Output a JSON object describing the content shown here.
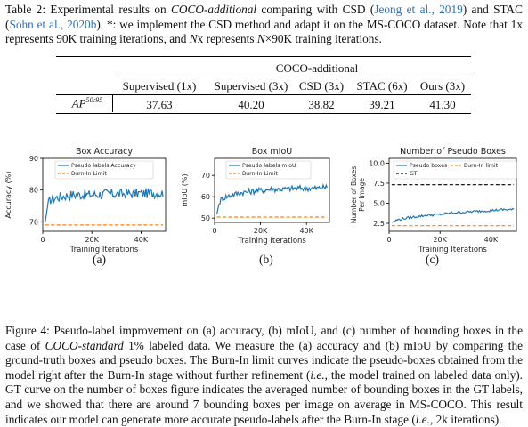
{
  "table_caption": {
    "lead": "Table 2: Experimental results on ",
    "dataset": "COCO-additional",
    "p1": " comparing with CSD (",
    "cite1": "Jeong et al., 2019",
    "p2": ") and STAC (",
    "cite2": "Sohn et al., 2020b",
    "p3": "). *: we implement the CSD method and adapt it on the MS-COCO dataset. Note that 1x represents 90K training iterations, and ",
    "nx": "N",
    "p4": "x represents ",
    "nx2": "N",
    "p5": "×90K training iterations."
  },
  "table": {
    "group_header": "COCO-additional",
    "columns": [
      "Supervised (1x)",
      "Supervised (3x)",
      "CSD (3x)",
      "STAC (6x)",
      "Ours (3x)"
    ],
    "row_label": "AP",
    "row_label_sup": "50:95",
    "values": [
      "37.63",
      "40.20",
      "38.82",
      "39.21",
      "41.30"
    ]
  },
  "figure": {
    "sublabels": [
      "(a)",
      "(b)",
      "(c)"
    ]
  },
  "fig_caption": {
    "lead": "Figure 4: Pseudo-label improvement on (a) accuracy, (b) mIoU, and (c) number of bounding boxes in the case of ",
    "dataset": "COCO-standard",
    "p1": " 1% labeled data. We measure the (a) accuracy and (b) mIoU by comparing the ground-truth boxes and pseudo boxes. The Burn-In limit curves indicate the pseudo-boxes obtained from the model right after the Burn-In stage without further refinement (",
    "ie1": "i.e.",
    "p2": ", the model trained on labeled data only). GT curve on the number of boxes figure indicates the averaged number of bounding boxes in the GT labels, and we showed that there are around 7 bounding boxes per image on average in MS-COCO. This result indicates our model can generate more accurate pseudo-labels after the Burn-In stage (",
    "ie2": "i.e.",
    "p3": ", 2k iterations)."
  },
  "chart_data": [
    {
      "type": "line",
      "title": "Box Accuracy",
      "xlabel": "Training Iterations",
      "ylabel": "Accuracy (%)",
      "xlim": [
        0,
        50000
      ],
      "ylim": [
        67,
        90
      ],
      "xticks": [
        0,
        20000,
        40000
      ],
      "xtick_labels": [
        "0",
        "20K",
        "40K"
      ],
      "yticks": [
        70,
        80,
        90
      ],
      "ytick_labels": [
        "70",
        "80",
        "90"
      ],
      "legend": "top-center",
      "series": [
        {
          "name": "Pseudo labels Accuracy",
          "style": "solid",
          "color": "#1f77b4",
          "x": [
            1000,
            2000,
            3000,
            5000,
            8000,
            12000,
            16000,
            20000,
            25000,
            30000,
            35000,
            40000,
            45000,
            49000
          ],
          "y": [
            70,
            75,
            77,
            77.5,
            78,
            78.5,
            78.5,
            78.5,
            78.8,
            78.8,
            78.8,
            79,
            79,
            79
          ]
        },
        {
          "name": "Burn-In Limit",
          "style": "dashed",
          "color": "#ff7f0e",
          "x": [
            1000,
            49000
          ],
          "y": [
            69,
            69
          ]
        }
      ]
    },
    {
      "type": "line",
      "title": "Box mIoU",
      "xlabel": "Training Iterations",
      "ylabel": "mIoU (%)",
      "xlim": [
        0,
        50000
      ],
      "ylim": [
        48,
        78
      ],
      "xticks": [
        0,
        20000,
        40000
      ],
      "xtick_labels": [
        "0",
        "20K",
        "40K"
      ],
      "yticks": [
        50,
        60,
        70
      ],
      "ytick_labels": [
        "50",
        "60",
        "70"
      ],
      "legend": "top-center",
      "series": [
        {
          "name": "Pseudo labels mIoU",
          "style": "solid",
          "color": "#1f77b4",
          "x": [
            1000,
            2000,
            3000,
            5000,
            8000,
            12000,
            16000,
            20000,
            25000,
            30000,
            35000,
            40000,
            45000,
            49000
          ],
          "y": [
            52,
            57,
            59,
            60,
            61,
            62,
            62.5,
            63,
            63.5,
            63.5,
            64,
            64,
            64,
            64.5
          ]
        },
        {
          "name": "Burn-In Limit",
          "style": "dashed",
          "color": "#ff7f0e",
          "x": [
            1000,
            49000
          ],
          "y": [
            50.5,
            50.5
          ]
        }
      ]
    },
    {
      "type": "line",
      "title": "Number of Pseudo Boxes",
      "xlabel": "Training Iterations",
      "ylabel": "Number of Boxes Per Image",
      "xlim": [
        0,
        50000
      ],
      "ylim": [
        1.5,
        10.6
      ],
      "xticks": [
        0,
        20000,
        40000
      ],
      "xtick_labels": [
        "0",
        "20K",
        "40K"
      ],
      "yticks": [
        2.5,
        5.0,
        7.5,
        10.0
      ],
      "ytick_labels": [
        "2.5",
        "5.0",
        "7.5",
        "10.0"
      ],
      "legend": "top",
      "series": [
        {
          "name": "Pseudo boxes",
          "style": "solid",
          "color": "#1f77b4",
          "x": [
            1000,
            3000,
            6000,
            10000,
            15000,
            20000,
            25000,
            30000,
            35000,
            40000,
            45000,
            49000
          ],
          "y": [
            2.6,
            2.9,
            3.1,
            3.3,
            3.5,
            3.6,
            3.8,
            3.9,
            4.0,
            4.1,
            4.2,
            4.2
          ]
        },
        {
          "name": "Burn-In limit",
          "style": "dashed",
          "color": "#ff7f0e",
          "x": [
            1000,
            49000
          ],
          "y": [
            2.2,
            2.2
          ]
        },
        {
          "name": "GT",
          "style": "dashed",
          "color": "#000000",
          "x": [
            1000,
            49000
          ],
          "y": [
            7.3,
            7.3
          ]
        }
      ]
    }
  ]
}
